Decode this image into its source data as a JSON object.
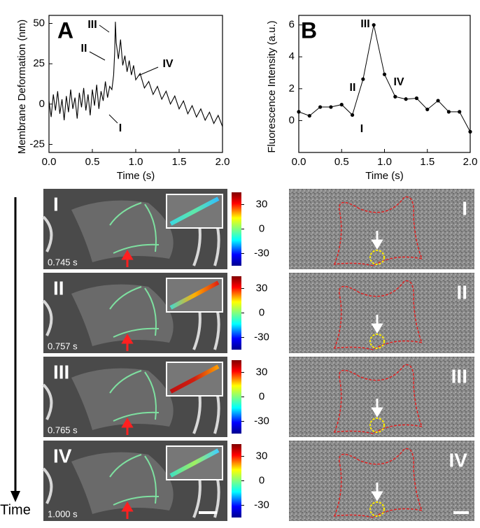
{
  "chart_data": [
    {
      "type": "line",
      "panel_label": "A",
      "x_label": "Time (s)",
      "y_label": "Membrane Deformation (nm)",
      "color": "#000000",
      "markers": false,
      "x": [
        0,
        0.025,
        0.05,
        0.075,
        0.1,
        0.125,
        0.15,
        0.175,
        0.2,
        0.225,
        0.25,
        0.275,
        0.3,
        0.325,
        0.35,
        0.375,
        0.4,
        0.425,
        0.45,
        0.475,
        0.5,
        0.525,
        0.55,
        0.575,
        0.6,
        0.625,
        0.65,
        0.675,
        0.7,
        0.725,
        0.745,
        0.757,
        0.765,
        0.775,
        0.8,
        0.825,
        0.85,
        0.875,
        0.9,
        0.925,
        0.95,
        0.975,
        1.0,
        1.05,
        1.1,
        1.15,
        1.2,
        1.25,
        1.3,
        1.35,
        1.4,
        1.45,
        1.5,
        1.55,
        1.6,
        1.65,
        1.7,
        1.75,
        1.8,
        1.85,
        1.9,
        1.95,
        2.0
      ],
      "values": [
        2,
        -8,
        6,
        -4,
        8,
        -6,
        3,
        -10,
        5,
        -5,
        9,
        -3,
        4,
        -9,
        7,
        -2,
        10,
        -4,
        6,
        -7,
        9,
        -1,
        12,
        -3,
        8,
        2,
        14,
        4,
        11,
        9,
        18,
        32,
        51,
        38,
        28,
        40,
        24,
        30,
        20,
        27,
        18,
        24,
        15,
        19,
        10,
        14,
        6,
        11,
        3,
        8,
        0,
        5,
        -3,
        2,
        -6,
        -1,
        -8,
        -3,
        -10,
        -5,
        -12,
        -7,
        -14
      ],
      "xlim": [
        0,
        2.0
      ],
      "ylim": [
        -30,
        55
      ],
      "xticks": [
        {
          "value": 0,
          "label": "0.0"
        },
        {
          "value": 0.5,
          "label": "0.5"
        },
        {
          "value": 1.0,
          "label": "1.0"
        },
        {
          "value": 1.5,
          "label": "1.5"
        },
        {
          "value": 2.0,
          "label": "2.0"
        }
      ],
      "yticks": [
        -25,
        0,
        25,
        50
      ],
      "annotations": [
        "III",
        "II",
        "IV",
        "I"
      ]
    },
    {
      "type": "line",
      "panel_label": "B",
      "x_label": "Time (s)",
      "y_label": "Fluorescence Intensity (a.u.)",
      "color": "#000000",
      "markers": true,
      "x": [
        0,
        0.125,
        0.25,
        0.375,
        0.5,
        0.625,
        0.75,
        0.875,
        1.0,
        1.125,
        1.25,
        1.375,
        1.5,
        1.625,
        1.75,
        1.875,
        2.0
      ],
      "values": [
        0.55,
        0.3,
        0.85,
        0.85,
        1.0,
        0.35,
        2.6,
        6.0,
        2.9,
        1.5,
        1.35,
        1.4,
        0.7,
        1.25,
        0.55,
        0.55,
        -0.7
      ],
      "xlim": [
        0,
        2.0
      ],
      "ylim": [
        -2,
        6.6
      ],
      "xticks": [
        {
          "value": 0,
          "label": "0.0"
        },
        {
          "value": 0.5,
          "label": "0.5"
        },
        {
          "value": 1.0,
          "label": "1.0"
        },
        {
          "value": 1.5,
          "label": "1.5"
        },
        {
          "value": 2.0,
          "label": "2.0"
        }
      ],
      "yticks": [
        0,
        2,
        4,
        6
      ],
      "annotations": [
        "III",
        "II",
        "IV",
        "I"
      ]
    }
  ],
  "panels": {
    "time_label": "Time",
    "colorbar": {
      "lim": [
        -45,
        45
      ],
      "ticks": [
        30,
        0,
        -30
      ]
    },
    "left": [
      {
        "label": "I",
        "time": "0.745 s"
      },
      {
        "label": "II",
        "time": "0.757 s"
      },
      {
        "label": "III",
        "time": "0.765 s"
      },
      {
        "label": "IV",
        "time": "1.000 s"
      }
    ],
    "right": [
      {
        "label": "I"
      },
      {
        "label": "II"
      },
      {
        "label": "III"
      },
      {
        "label": "IV"
      }
    ]
  }
}
